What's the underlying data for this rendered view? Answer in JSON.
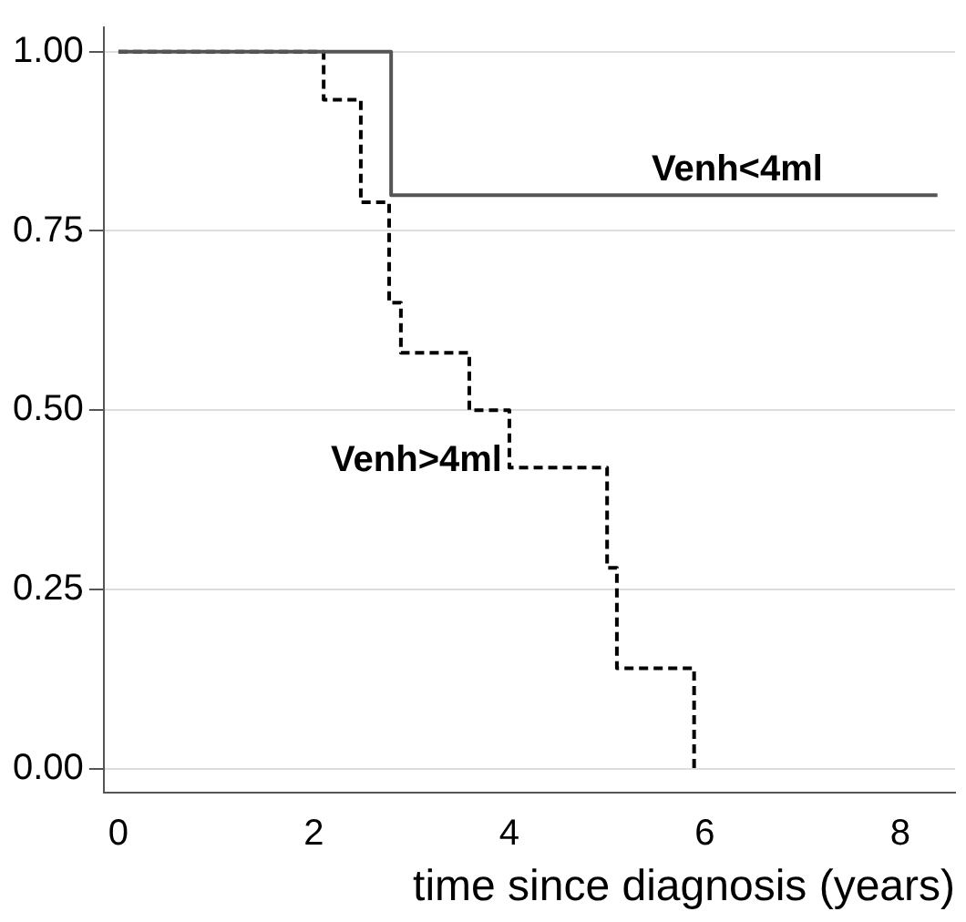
{
  "chart_data": {
    "type": "step",
    "xlabel": "time since diagnosis (years)",
    "xlim": [
      -0.15,
      8.56
    ],
    "ylim": [
      -0.034,
      1.034
    ],
    "xticks": [
      0,
      2,
      4,
      6,
      8
    ],
    "yticks": [
      {
        "value": 0,
        "label": "0.00"
      },
      {
        "value": 0.25,
        "label": "0.25"
      },
      {
        "value": 0.5,
        "label": "0.50"
      },
      {
        "value": 0.75,
        "label": "0.75"
      },
      {
        "value": 1,
        "label": "1.00"
      }
    ],
    "grid": "y",
    "legend": false,
    "marker": "none",
    "series": [
      {
        "name": "Venh<4ml",
        "color": "#555555",
        "line_style": "solid",
        "x": [
          0,
          2.79,
          8.38
        ],
        "values": [
          1,
          0.8,
          0.8
        ]
      },
      {
        "name": "Venh>4ml",
        "color": "#000000",
        "line_style": "dashed",
        "x": [
          0,
          2.1,
          2.48,
          2.77,
          2.89,
          3.59,
          4.0,
          5.0,
          5.1,
          5.89
        ],
        "values": [
          1,
          0.933,
          0.79,
          0.65,
          0.58,
          0.5,
          0.42,
          0.28,
          0.14,
          0
        ]
      }
    ]
  }
}
